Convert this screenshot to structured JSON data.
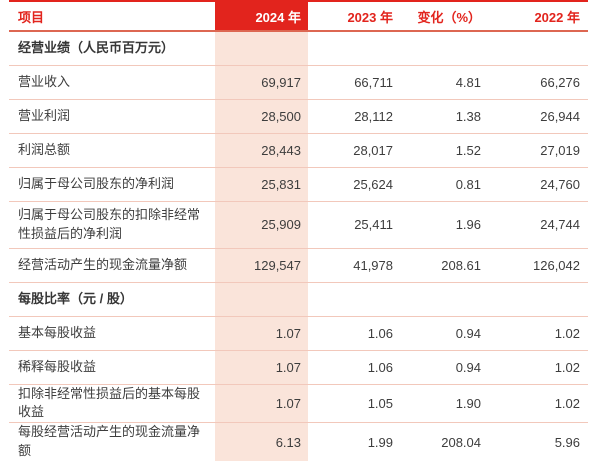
{
  "colors": {
    "accent_red": "#e2241d",
    "band_pink": "#fae4da",
    "divider_pink": "#f2c8bb",
    "rule_red": "#dd6752",
    "body_text": "#3d3d3d"
  },
  "table": {
    "columns": {
      "item": "项目",
      "y2024": "2024 年",
      "y2023": "2023 年",
      "change": "变化（%）",
      "y2022": "2022 年"
    },
    "sections": [
      {
        "header": "经营业绩（人民币百万元）",
        "rows": [
          {
            "label": "营业收入",
            "y2024": "69,917",
            "y2023": "66,711",
            "change": "4.81",
            "y2022": "66,276"
          },
          {
            "label": "营业利润",
            "y2024": "28,500",
            "y2023": "28,112",
            "change": "1.38",
            "y2022": "26,944"
          },
          {
            "label": "利润总额",
            "y2024": "28,443",
            "y2023": "28,017",
            "change": "1.52",
            "y2022": "27,019"
          },
          {
            "label": "归属于母公司股东的净利润",
            "y2024": "25,831",
            "y2023": "25,624",
            "change": "0.81",
            "y2022": "24,760"
          },
          {
            "label": "归属于母公司股东的扣除非经常性损益后的净利润",
            "y2024": "25,909",
            "y2023": "25,411",
            "change": "1.96",
            "y2022": "24,744"
          },
          {
            "label": "经营活动产生的现金流量净额",
            "y2024": "129,547",
            "y2023": "41,978",
            "change": "208.61",
            "y2022": "126,042"
          }
        ]
      },
      {
        "header": "每股比率（元 / 股）",
        "rows": [
          {
            "label": "基本每股收益",
            "y2024": "1.07",
            "y2023": "1.06",
            "change": "0.94",
            "y2022": "1.02"
          },
          {
            "label": "稀释每股收益",
            "y2024": "1.07",
            "y2023": "1.06",
            "change": "0.94",
            "y2022": "1.02"
          },
          {
            "label": "扣除非经常性损益后的基本每股收益",
            "y2024": "1.07",
            "y2023": "1.05",
            "change": "1.90",
            "y2022": "1.02"
          },
          {
            "label": "每股经营活动产生的现金流量净额",
            "y2024": "6.13",
            "y2023": "1.99",
            "change": "208.04",
            "y2022": "5.96"
          }
        ]
      }
    ]
  }
}
